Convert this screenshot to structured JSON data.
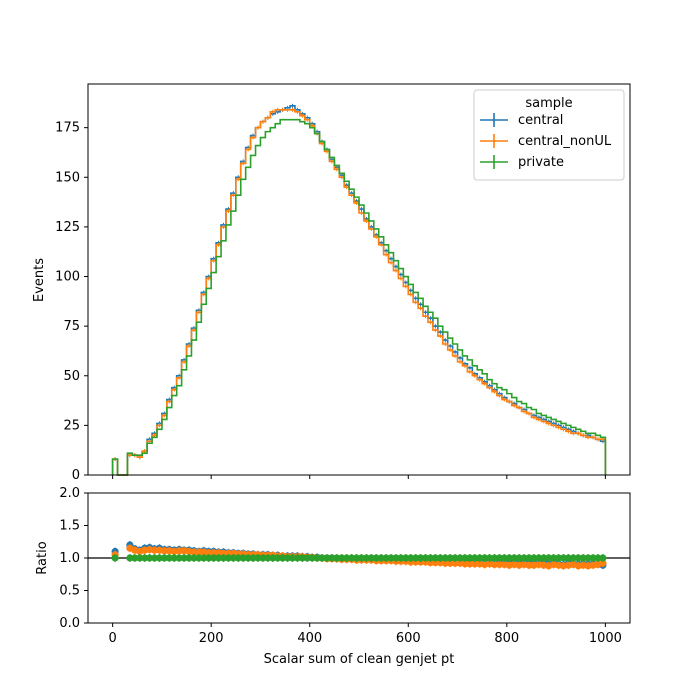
{
  "chart_data": [
    {
      "type": "line",
      "subtype": "step-histogram",
      "ylabel": "Events",
      "xlim": [
        -50,
        1050
      ],
      "ylim": [
        0,
        197
      ],
      "yticks": [
        0,
        25,
        50,
        75,
        100,
        125,
        150,
        175
      ],
      "legend": {
        "title": "sample",
        "placement": "top-right"
      },
      "bin_width": 10,
      "x": [
        0,
        10,
        20,
        30,
        40,
        50,
        60,
        70,
        80,
        90,
        100,
        110,
        120,
        130,
        140,
        150,
        160,
        170,
        180,
        190,
        200,
        210,
        220,
        230,
        240,
        250,
        260,
        270,
        280,
        290,
        300,
        310,
        320,
        330,
        340,
        350,
        360,
        370,
        380,
        390,
        400,
        410,
        420,
        430,
        440,
        450,
        460,
        470,
        480,
        490,
        500,
        510,
        520,
        530,
        540,
        550,
        560,
        570,
        580,
        590,
        600,
        610,
        620,
        630,
        640,
        650,
        660,
        670,
        680,
        690,
        700,
        710,
        720,
        730,
        740,
        750,
        760,
        770,
        780,
        790,
        800,
        810,
        820,
        830,
        840,
        850,
        860,
        870,
        880,
        890,
        900,
        910,
        920,
        930,
        940,
        950,
        960,
        970,
        980,
        990
      ],
      "series": [
        {
          "name": "central",
          "color": "#1f77b4",
          "values": [
            8,
            0,
            0,
            10,
            10,
            9,
            12,
            18,
            21,
            26,
            31,
            38,
            44,
            50,
            58,
            66,
            74,
            83,
            92,
            100,
            109,
            117,
            126,
            134,
            142,
            150,
            158,
            165,
            171,
            175,
            178,
            180,
            182,
            183,
            184,
            185,
            186,
            184,
            182,
            180,
            177,
            173,
            168,
            164,
            159,
            155,
            151,
            146,
            142,
            138,
            134,
            129,
            125,
            121,
            117,
            113,
            109,
            105,
            101,
            97,
            93,
            89,
            86,
            82,
            79,
            75,
            72,
            68,
            65,
            62,
            59,
            56,
            54,
            51,
            49,
            47,
            45,
            43,
            41,
            39,
            37,
            36,
            34,
            33,
            31,
            30,
            29,
            28,
            27,
            26,
            25,
            24,
            23,
            22,
            21,
            20,
            20,
            19,
            18,
            17
          ]
        },
        {
          "name": "central_nonUL",
          "color": "#ff7f0e",
          "values": [
            8,
            0,
            0,
            10,
            10,
            9,
            12,
            17,
            20,
            25,
            30,
            37,
            43,
            49,
            57,
            65,
            73,
            82,
            91,
            99,
            108,
            116,
            125,
            133,
            141,
            149,
            157,
            164,
            170,
            175,
            178,
            180,
            183,
            184,
            184,
            184,
            184,
            183,
            181,
            179,
            176,
            172,
            167,
            163,
            158,
            154,
            150,
            145,
            141,
            137,
            132,
            128,
            124,
            120,
            116,
            111,
            107,
            103,
            99,
            95,
            91,
            87,
            84,
            80,
            77,
            73,
            70,
            66,
            63,
            60,
            57,
            55,
            52,
            50,
            48,
            46,
            44,
            42,
            40,
            38,
            37,
            35,
            34,
            32,
            31,
            29,
            28,
            27,
            26,
            25,
            24,
            23,
            22,
            21,
            21,
            20,
            19,
            19,
            18,
            18
          ]
        },
        {
          "name": "private",
          "color": "#2ca02c",
          "values": [
            8,
            0,
            0,
            11,
            10,
            10,
            11,
            16,
            19,
            23,
            28,
            34,
            40,
            45,
            53,
            60,
            68,
            77,
            86,
            94,
            102,
            110,
            118,
            126,
            133,
            141,
            149,
            155,
            161,
            166,
            170,
            173,
            175,
            177,
            179,
            179,
            179,
            179,
            178,
            177,
            175,
            172,
            168,
            164,
            160,
            156,
            152,
            148,
            144,
            140,
            136,
            132,
            128,
            124,
            120,
            116,
            112,
            108,
            104,
            100,
            96,
            92,
            89,
            85,
            82,
            79,
            75,
            72,
            69,
            66,
            63,
            60,
            58,
            55,
            53,
            51,
            48,
            46,
            44,
            43,
            41,
            39,
            37,
            36,
            34,
            33,
            31,
            30,
            29,
            28,
            27,
            26,
            25,
            24,
            23,
            22,
            21,
            21,
            20,
            19
          ]
        }
      ]
    },
    {
      "type": "scatter",
      "xlabel": "Scalar sum of clean genjet pt",
      "ylabel": "Ratio",
      "xlim": [
        -50,
        1050
      ],
      "ylim": [
        0,
        2
      ],
      "xticks": [
        0,
        200,
        400,
        600,
        800,
        1000
      ],
      "yticks": [
        0.0,
        0.5,
        1.0,
        1.5,
        2.0
      ],
      "ytick_labels": [
        "0.0",
        "0.5",
        "1.0",
        "1.5",
        "2.0"
      ],
      "reference_line": 1.0,
      "x": [
        5,
        35,
        45,
        55,
        65,
        75,
        85,
        95,
        105,
        115,
        125,
        135,
        145,
        155,
        165,
        175,
        185,
        195,
        205,
        215,
        225,
        235,
        245,
        255,
        265,
        275,
        285,
        295,
        305,
        315,
        325,
        335,
        345,
        355,
        365,
        375,
        385,
        395,
        405,
        415,
        425,
        435,
        445,
        455,
        465,
        475,
        485,
        495,
        505,
        515,
        525,
        535,
        545,
        555,
        565,
        575,
        585,
        595,
        605,
        615,
        625,
        635,
        645,
        655,
        665,
        675,
        685,
        695,
        705,
        715,
        725,
        735,
        745,
        755,
        765,
        775,
        785,
        795,
        805,
        815,
        825,
        835,
        845,
        855,
        865,
        875,
        885,
        895,
        905,
        915,
        925,
        935,
        945,
        955,
        965,
        975,
        985,
        995
      ],
      "series": [
        {
          "name": "central",
          "color": "#1f77b4",
          "values": [
            1.1,
            1.2,
            1.14,
            1.12,
            1.15,
            1.16,
            1.14,
            1.15,
            1.13,
            1.13,
            1.12,
            1.13,
            1.12,
            1.12,
            1.11,
            1.1,
            1.11,
            1.1,
            1.1,
            1.09,
            1.09,
            1.08,
            1.08,
            1.07,
            1.07,
            1.06,
            1.06,
            1.05,
            1.05,
            1.05,
            1.04,
            1.04,
            1.03,
            1.03,
            1.03,
            1.03,
            1.02,
            1.02,
            1.01,
            1.01,
            1.0,
            1.0,
            1.0,
            0.99,
            0.99,
            0.99,
            0.99,
            0.99,
            0.99,
            0.98,
            0.98,
            0.98,
            0.98,
            0.97,
            0.97,
            0.97,
            0.97,
            0.97,
            0.97,
            0.96,
            0.96,
            0.96,
            0.96,
            0.95,
            0.96,
            0.95,
            0.95,
            0.94,
            0.95,
            0.94,
            0.94,
            0.93,
            0.94,
            0.93,
            0.93,
            0.93,
            0.92,
            0.93,
            0.92,
            0.92,
            0.93,
            0.91,
            0.92,
            0.91,
            0.92,
            0.93,
            0.9,
            0.92,
            0.91,
            0.89,
            0.92,
            0.91,
            0.9,
            0.91,
            0.9,
            0.91,
            0.9,
            0.89
          ]
        },
        {
          "name": "central_nonUL",
          "color": "#ff7f0e",
          "values": [
            1.05,
            1.15,
            1.12,
            1.1,
            1.12,
            1.13,
            1.12,
            1.12,
            1.11,
            1.11,
            1.1,
            1.11,
            1.11,
            1.1,
            1.09,
            1.09,
            1.09,
            1.08,
            1.08,
            1.08,
            1.07,
            1.07,
            1.07,
            1.06,
            1.06,
            1.05,
            1.05,
            1.05,
            1.04,
            1.04,
            1.04,
            1.03,
            1.03,
            1.02,
            1.02,
            1.02,
            1.02,
            1.01,
            1.01,
            1.0,
            1.0,
            0.99,
            0.99,
            0.99,
            0.98,
            0.98,
            0.98,
            0.97,
            0.97,
            0.97,
            0.97,
            0.96,
            0.96,
            0.96,
            0.96,
            0.95,
            0.95,
            0.95,
            0.94,
            0.94,
            0.94,
            0.94,
            0.93,
            0.93,
            0.93,
            0.92,
            0.92,
            0.92,
            0.92,
            0.91,
            0.91,
            0.91,
            0.91,
            0.9,
            0.91,
            0.9,
            0.9,
            0.9,
            0.89,
            0.9,
            0.89,
            0.9,
            0.89,
            0.89,
            0.9,
            0.89,
            0.88,
            0.9,
            0.89,
            0.88,
            0.89,
            0.9,
            0.88,
            0.89,
            0.88,
            0.89,
            0.9,
            0.92
          ]
        },
        {
          "name": "private",
          "color": "#2ca02c",
          "values": [
            1.0,
            1.0,
            1.0,
            1.0,
            1.0,
            1.0,
            1.0,
            1.0,
            1.0,
            1.0,
            1.0,
            1.0,
            1.0,
            1.0,
            1.0,
            1.0,
            1.0,
            1.0,
            1.0,
            1.0,
            1.0,
            1.0,
            1.0,
            1.0,
            1.0,
            1.0,
            1.0,
            1.0,
            1.0,
            1.0,
            1.0,
            1.0,
            1.0,
            1.0,
            1.0,
            1.0,
            1.0,
            1.0,
            1.0,
            1.0,
            1.0,
            1.0,
            1.0,
            1.0,
            1.0,
            1.0,
            1.0,
            1.0,
            1.0,
            1.0,
            1.0,
            1.0,
            1.0,
            1.0,
            1.0,
            1.0,
            1.0,
            1.0,
            1.0,
            1.0,
            1.0,
            1.0,
            1.0,
            1.0,
            1.0,
            1.0,
            1.0,
            1.0,
            1.0,
            1.0,
            1.0,
            1.0,
            1.0,
            1.0,
            1.0,
            1.0,
            1.0,
            1.0,
            1.0,
            1.0,
            1.0,
            1.0,
            1.0,
            1.0,
            1.0,
            1.0,
            1.0,
            1.0,
            1.0,
            1.0,
            1.0,
            1.0,
            1.0,
            1.0,
            1.0,
            1.0,
            1.0,
            1.0
          ]
        }
      ]
    }
  ]
}
